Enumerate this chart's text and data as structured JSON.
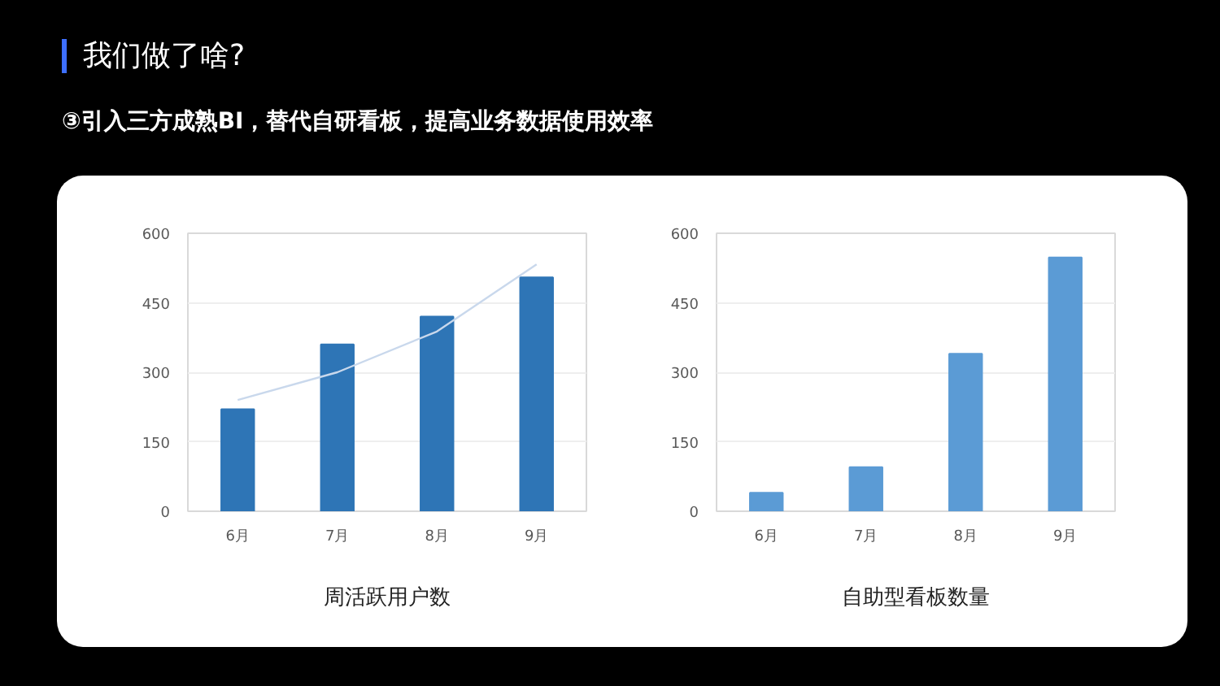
{
  "chart_data": [
    {
      "type": "bar",
      "title": "我们做了啥?",
      "subtitle": "③引入三方成熟BI，替代自研看板，提高业务数据使用效率",
      "xlabel": "周活跃用户数",
      "categories": [
        "6月",
        "7月",
        "8月",
        "9月"
      ],
      "series": [
        {
          "type": "bar",
          "color": "#2e75b6",
          "values": [
            220,
            360,
            420,
            505
          ]
        },
        {
          "type": "line",
          "color": "#c9d8ec",
          "values": [
            240,
            300,
            388,
            533
          ]
        }
      ],
      "ylim": [
        0,
        600
      ],
      "yticks": [
        0,
        150,
        300,
        450,
        600
      ],
      "grid": "y"
    },
    {
      "type": "bar",
      "xlabel": "自助型看板数量",
      "categories": [
        "6月",
        "7月",
        "8月",
        "9月"
      ],
      "color": "#5b9bd5",
      "values": [
        40,
        95,
        340,
        548
      ],
      "ylim": [
        0,
        600
      ],
      "yticks": [
        0,
        150,
        300,
        450,
        600
      ],
      "grid": "y"
    }
  ]
}
